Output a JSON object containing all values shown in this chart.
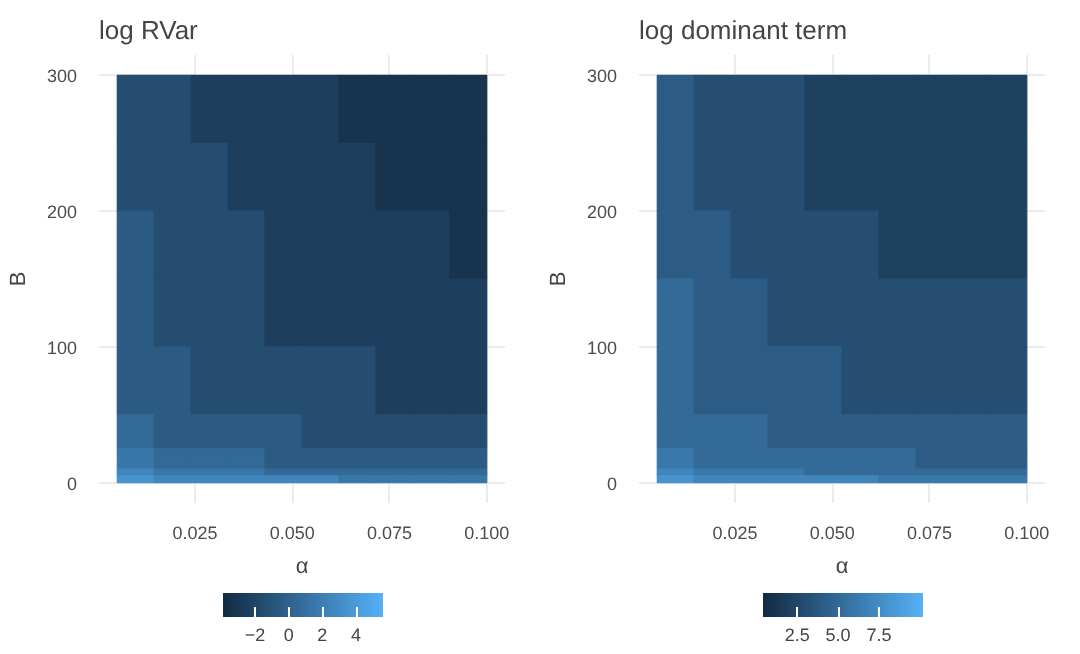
{
  "chart_data": [
    {
      "type": "heatmap",
      "title": "log RVar",
      "xlabel": "α",
      "ylabel": "B",
      "x": [
        0.00975,
        0.01925,
        0.02875,
        0.03825,
        0.04775,
        0.05725,
        0.06675,
        0.07625,
        0.08575,
        0.09525
      ],
      "y": [
        275,
        225,
        175,
        125,
        75,
        37.5,
        17.5,
        7.5,
        2.5
      ],
      "cells": [
        [
          -1.5,
          -1.5,
          -2.5,
          -2.5,
          -2.5,
          -2.5,
          -3.3,
          -3.3,
          -3.3,
          -3.3
        ],
        [
          -1.5,
          -1.5,
          -1.5,
          -2.5,
          -2.5,
          -2.5,
          -2.5,
          -3.3,
          -3.3,
          -3.3
        ],
        [
          -0.5,
          -1.5,
          -1.5,
          -1.5,
          -2.5,
          -2.5,
          -2.5,
          -2.5,
          -2.5,
          -3.3
        ],
        [
          -0.5,
          -1.5,
          -1.5,
          -1.5,
          -2.5,
          -2.5,
          -2.5,
          -2.5,
          -2.5,
          -2.5
        ],
        [
          -0.5,
          -0.5,
          -1.5,
          -1.5,
          -1.5,
          -1.5,
          -1.5,
          -2.5,
          -2.5,
          -2.5
        ],
        [
          0.5,
          -0.5,
          -0.5,
          -0.5,
          -0.5,
          -1.5,
          -1.5,
          -1.5,
          -1.5,
          -1.5
        ],
        [
          1.5,
          0.5,
          0.5,
          0.5,
          -0.5,
          -0.5,
          -0.5,
          -0.5,
          -0.5,
          -0.5
        ],
        [
          2.5,
          1.5,
          1.5,
          1.5,
          0.5,
          0.5,
          0.5,
          0.5,
          0.5,
          0.5
        ],
        [
          3.5,
          2.5,
          2.5,
          2.5,
          2.5,
          2.5,
          1.5,
          1.5,
          1.5,
          1.5
        ]
      ],
      "xlim": [
        0.0003,
        0.1047
      ],
      "xticks": [
        {
          "value": 0.025,
          "label": "0.025"
        },
        {
          "value": 0.05,
          "label": "0.050"
        },
        {
          "value": 0.075,
          "label": "0.075"
        },
        {
          "value": 0.1,
          "label": "0.100"
        }
      ],
      "ylim": [
        -15,
        315
      ],
      "yticks": [
        0,
        100,
        200,
        300
      ],
      "clim": [
        -3.9,
        5.6
      ],
      "cticks": [
        {
          "value": -2,
          "label": "−2"
        },
        0,
        2,
        4
      ],
      "colors": [
        "#132b43",
        "#56b1f7"
      ],
      "grid": true
    },
    {
      "type": "heatmap",
      "title": "log dominant term",
      "xlabel": "α",
      "ylabel": "B",
      "x": [
        0.00975,
        0.01925,
        0.02875,
        0.03825,
        0.04775,
        0.05725,
        0.06675,
        0.07625,
        0.08575,
        0.09525
      ],
      "y": [
        275,
        225,
        175,
        125,
        75,
        37.5,
        17.5,
        7.5,
        2.5
      ],
      "cells": [
        [
          4,
          3,
          3,
          3,
          2,
          2,
          2,
          2,
          2,
          2
        ],
        [
          4,
          3,
          3,
          3,
          2,
          2,
          2,
          2,
          2,
          2
        ],
        [
          4,
          4,
          3,
          3,
          3,
          3,
          2,
          2,
          2,
          2
        ],
        [
          5,
          4,
          4,
          3,
          3,
          3,
          3,
          3,
          3,
          3
        ],
        [
          5,
          4,
          4,
          4,
          4,
          3,
          3,
          3,
          3,
          3
        ],
        [
          5,
          5,
          5,
          4,
          4,
          4,
          4,
          4,
          4,
          4
        ],
        [
          6,
          5,
          5,
          5,
          5,
          5,
          5,
          4,
          4,
          4
        ],
        [
          7,
          6,
          6,
          6,
          5,
          5,
          5,
          5,
          5,
          5
        ],
        [
          8,
          7,
          7,
          7,
          7,
          7,
          6,
          6,
          6,
          6
        ]
      ],
      "xlim": [
        0.0003,
        0.1047
      ],
      "xticks": [
        {
          "value": 0.025,
          "label": "0.025"
        },
        {
          "value": 0.05,
          "label": "0.050"
        },
        {
          "value": 0.075,
          "label": "0.075"
        },
        {
          "value": 0.1,
          "label": "0.100"
        }
      ],
      "ylim": [
        -15,
        315
      ],
      "yticks": [
        0,
        100,
        200,
        300
      ],
      "clim": [
        0.4,
        10.2
      ],
      "cticks": [
        2.5,
        {
          "value": 5,
          "label": "5.0"
        },
        7.5
      ],
      "colors": [
        "#132b43",
        "#56b1f7"
      ],
      "grid": true
    }
  ]
}
